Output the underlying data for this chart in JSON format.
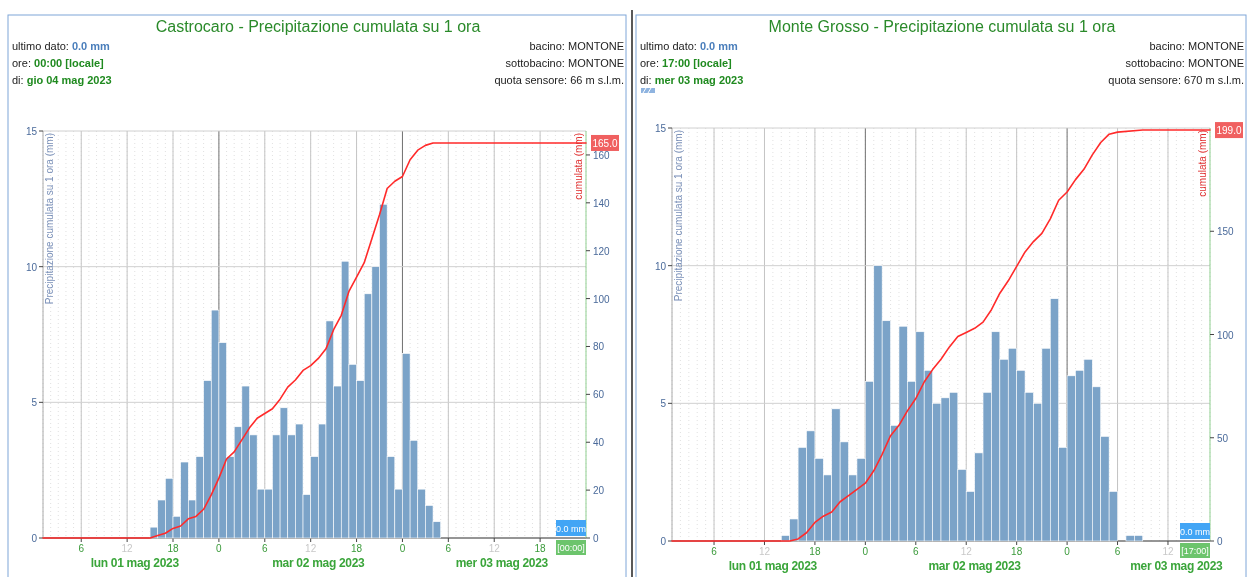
{
  "chart_data": [
    {
      "type": "bar",
      "title": "Castrocaro - Precipitazione cumulata su 1 ora",
      "ylabel": "Precipitazione cumulata su 1 ora (mm)",
      "y2label": "cumulata (mm)",
      "grid": true,
      "xlim": [
        "2023-05-01T01:00",
        "2023-05-04T00:00"
      ],
      "xticks": [
        {
          "value": "2023-05-01T06:00",
          "label": "6"
        },
        {
          "value": "2023-05-01T12:00",
          "label": "12"
        },
        {
          "value": "2023-05-01T18:00",
          "label": "18"
        },
        {
          "value": "2023-05-02T00:00",
          "label": "0"
        },
        {
          "value": "2023-05-02T06:00",
          "label": "6"
        },
        {
          "value": "2023-05-02T12:00",
          "label": "12"
        },
        {
          "value": "2023-05-02T18:00",
          "label": "18"
        },
        {
          "value": "2023-05-03T00:00",
          "label": "0"
        },
        {
          "value": "2023-05-03T06:00",
          "label": "6"
        },
        {
          "value": "2023-05-03T12:00",
          "label": "12"
        },
        {
          "value": "2023-05-03T18:00",
          "label": "18"
        }
      ],
      "ylim": [
        0,
        15
      ],
      "yticks": [
        0,
        5,
        10,
        15
      ],
      "y2lim": [
        0,
        170
      ],
      "y2ticks": [
        0,
        20,
        40,
        60,
        80,
        100,
        120,
        140,
        160
      ],
      "annotations": [
        "ultimo dato: 0.0 mm",
        "ore: 00:00 [locale]",
        "di: gio 04 mag 2023",
        "bacino: MONTONE",
        "sottobacino: MONTONE",
        "quota sensore: 66 m s.l.m.",
        "0.0 mm",
        "[00:00]",
        "lun 01 mag 2023",
        "mar 02 mag 2023",
        "mer 03 mag 2023"
      ],
      "series": [
        {
          "color": "#7ba3c8",
          "x": [
            "2023-05-01T15:30",
            "2023-05-01T16:30",
            "2023-05-01T17:30",
            "2023-05-01T18:30",
            "2023-05-01T19:30",
            "2023-05-01T20:30",
            "2023-05-01T21:30",
            "2023-05-01T22:30",
            "2023-05-01T23:30",
            "2023-05-02T00:30",
            "2023-05-02T01:30",
            "2023-05-02T02:30",
            "2023-05-02T03:30",
            "2023-05-02T04:30",
            "2023-05-02T05:30",
            "2023-05-02T06:30",
            "2023-05-02T07:30",
            "2023-05-02T08:30",
            "2023-05-02T09:30",
            "2023-05-02T10:30",
            "2023-05-02T11:30",
            "2023-05-02T12:30",
            "2023-05-02T13:30",
            "2023-05-02T14:30",
            "2023-05-02T15:30",
            "2023-05-02T16:30",
            "2023-05-02T17:30",
            "2023-05-02T18:30",
            "2023-05-02T19:30",
            "2023-05-02T20:30",
            "2023-05-02T21:30",
            "2023-05-02T22:30",
            "2023-05-02T23:30",
            "2023-05-03T00:30",
            "2023-05-03T01:30",
            "2023-05-03T02:30",
            "2023-05-03T03:30",
            "2023-05-03T04:30"
          ],
          "values": [
            0.4,
            1.4,
            2.2,
            0.8,
            2.8,
            1.4,
            3.0,
            5.8,
            8.4,
            7.2,
            3.0,
            4.1,
            5.6,
            3.8,
            1.8,
            1.8,
            3.8,
            4.8,
            3.8,
            4.2,
            1.6,
            3.0,
            4.2,
            8.0,
            5.6,
            10.2,
            6.4,
            5.8,
            9.0,
            10.0,
            12.3,
            3.0,
            1.8,
            6.8,
            3.6,
            1.8,
            1.2,
            0.6
          ]
        },
        {
          "type": "line",
          "axis": "y2",
          "color": "#ff2a2a",
          "x": [
            "2023-05-01T01:00",
            "2023-05-01T15:00",
            "2023-05-01T16:00",
            "2023-05-01T17:00",
            "2023-05-01T18:00",
            "2023-05-01T19:00",
            "2023-05-01T20:00",
            "2023-05-01T21:00",
            "2023-05-01T22:00",
            "2023-05-01T23:00",
            "2023-05-02T00:00",
            "2023-05-02T01:00",
            "2023-05-02T02:00",
            "2023-05-02T03:00",
            "2023-05-02T04:00",
            "2023-05-02T05:00",
            "2023-05-02T06:00",
            "2023-05-02T07:00",
            "2023-05-02T08:00",
            "2023-05-02T09:00",
            "2023-05-02T10:00",
            "2023-05-02T11:00",
            "2023-05-02T12:00",
            "2023-05-02T13:00",
            "2023-05-02T14:00",
            "2023-05-02T15:00",
            "2023-05-02T16:00",
            "2023-05-02T17:00",
            "2023-05-02T18:00",
            "2023-05-02T19:00",
            "2023-05-02T20:00",
            "2023-05-02T21:00",
            "2023-05-02T22:00",
            "2023-05-02T23:00",
            "2023-05-03T00:00",
            "2023-05-03T01:00",
            "2023-05-03T02:00",
            "2023-05-03T03:00",
            "2023-05-03T04:00",
            "2023-05-03T05:00",
            "2023-05-04T00:00"
          ],
          "values": [
            0,
            0,
            1,
            2,
            4,
            5,
            8,
            9,
            12,
            18,
            25,
            33,
            36,
            41,
            46,
            50,
            52,
            54,
            58,
            63,
            66,
            70,
            72,
            75,
            79,
            87,
            93,
            103,
            109,
            115,
            125,
            135,
            146,
            149,
            151,
            158,
            162,
            164,
            165,
            165,
            165
          ],
          "value_labels": [
            null,
            null,
            null,
            null,
            null,
            null,
            null,
            null,
            null,
            null,
            null,
            null,
            null,
            null,
            null,
            null,
            null,
            null,
            null,
            null,
            null,
            null,
            null,
            null,
            null,
            null,
            null,
            null,
            null,
            null,
            null,
            null,
            null,
            null,
            null,
            null,
            null,
            null,
            null,
            null,
            "165.0"
          ]
        }
      ]
    },
    {
      "type": "bar",
      "title": "Monte Grosso - Precipitazione cumulata su 1 ora",
      "ylabel": "Precipitazione cumulata su 1 ora (mm)",
      "y2label": "cumulata (mm)",
      "grid": true,
      "xlim": [
        "2023-05-01T01:00",
        "2023-05-03T17:00"
      ],
      "xticks": [
        {
          "value": "2023-05-01T06:00",
          "label": "6"
        },
        {
          "value": "2023-05-01T12:00",
          "label": "12"
        },
        {
          "value": "2023-05-01T18:00",
          "label": "18"
        },
        {
          "value": "2023-05-02T00:00",
          "label": "0"
        },
        {
          "value": "2023-05-02T06:00",
          "label": "6"
        },
        {
          "value": "2023-05-02T12:00",
          "label": "12"
        },
        {
          "value": "2023-05-02T18:00",
          "label": "18"
        },
        {
          "value": "2023-05-03T00:00",
          "label": "0"
        },
        {
          "value": "2023-05-03T06:00",
          "label": "6"
        },
        {
          "value": "2023-05-03T12:00",
          "label": "12"
        }
      ],
      "ylim": [
        0,
        15
      ],
      "yticks": [
        0,
        5,
        10,
        15
      ],
      "y2lim": [
        0,
        200
      ],
      "y2ticks": [
        0,
        50,
        100,
        150
      ],
      "annotations": [
        "ultimo dato: 0.0 mm",
        "ore: 17:00 [locale]",
        "di: mer 03 mag 2023",
        "bacino: MONTONE",
        "sottobacino: MONTONE",
        "quota sensore: 670 m s.l.m.",
        "0.0 mm",
        "[17:00]",
        "lun 01 mag 2023",
        "mar 02 mag 2023",
        "mer 03 mag 2023"
      ],
      "series": [
        {
          "color": "#7ba3c8",
          "x": [
            "2023-05-01T14:30",
            "2023-05-01T15:30",
            "2023-05-01T16:30",
            "2023-05-01T17:30",
            "2023-05-01T18:30",
            "2023-05-01T19:30",
            "2023-05-01T20:30",
            "2023-05-01T21:30",
            "2023-05-01T22:30",
            "2023-05-01T23:30",
            "2023-05-02T00:30",
            "2023-05-02T01:30",
            "2023-05-02T02:30",
            "2023-05-02T03:30",
            "2023-05-02T04:30",
            "2023-05-02T05:30",
            "2023-05-02T06:30",
            "2023-05-02T07:30",
            "2023-05-02T08:30",
            "2023-05-02T09:30",
            "2023-05-02T10:30",
            "2023-05-02T11:30",
            "2023-05-02T12:30",
            "2023-05-02T13:30",
            "2023-05-02T14:30",
            "2023-05-02T15:30",
            "2023-05-02T16:30",
            "2023-05-02T17:30",
            "2023-05-02T18:30",
            "2023-05-02T19:30",
            "2023-05-02T20:30",
            "2023-05-02T21:30",
            "2023-05-02T22:30",
            "2023-05-02T23:30",
            "2023-05-03T00:30",
            "2023-05-03T01:30",
            "2023-05-03T02:30",
            "2023-05-03T03:30",
            "2023-05-03T04:30",
            "2023-05-03T05:30",
            "2023-05-03T07:30",
            "2023-05-03T08:30"
          ],
          "values": [
            0.2,
            0.8,
            3.4,
            4.0,
            3.0,
            2.4,
            4.8,
            3.6,
            2.4,
            3.0,
            5.8,
            10.0,
            8.0,
            4.2,
            7.8,
            5.8,
            7.6,
            6.2,
            5.0,
            5.2,
            5.4,
            2.6,
            1.8,
            3.2,
            5.4,
            7.6,
            6.6,
            7.0,
            6.2,
            5.4,
            5.0,
            7.0,
            8.8,
            3.4,
            6.0,
            6.2,
            6.6,
            5.6,
            3.8,
            1.8,
            0.2,
            0.2
          ]
        },
        {
          "type": "line",
          "axis": "y2",
          "color": "#ff2a2a",
          "x": [
            "2023-05-01T01:00",
            "2023-05-01T14:00",
            "2023-05-01T15:00",
            "2023-05-01T16:00",
            "2023-05-01T17:00",
            "2023-05-01T18:00",
            "2023-05-01T19:00",
            "2023-05-01T20:00",
            "2023-05-01T21:00",
            "2023-05-01T22:00",
            "2023-05-01T23:00",
            "2023-05-02T00:00",
            "2023-05-02T01:00",
            "2023-05-02T02:00",
            "2023-05-02T03:00",
            "2023-05-02T04:00",
            "2023-05-02T05:00",
            "2023-05-02T06:00",
            "2023-05-02T07:00",
            "2023-05-02T08:00",
            "2023-05-02T09:00",
            "2023-05-02T10:00",
            "2023-05-02T11:00",
            "2023-05-02T12:00",
            "2023-05-02T13:00",
            "2023-05-02T14:00",
            "2023-05-02T15:00",
            "2023-05-02T16:00",
            "2023-05-02T17:00",
            "2023-05-02T18:00",
            "2023-05-02T19:00",
            "2023-05-02T20:00",
            "2023-05-02T21:00",
            "2023-05-02T22:00",
            "2023-05-02T23:00",
            "2023-05-03T00:00",
            "2023-05-03T01:00",
            "2023-05-03T02:00",
            "2023-05-03T03:00",
            "2023-05-03T04:00",
            "2023-05-03T05:00",
            "2023-05-03T06:00",
            "2023-05-03T09:00",
            "2023-05-03T17:00"
          ],
          "values": [
            0,
            0,
            0,
            1,
            4,
            9,
            12,
            14,
            19,
            22,
            25,
            28,
            34,
            42,
            51,
            56,
            63,
            69,
            77,
            83,
            88,
            94,
            99,
            101,
            103,
            106,
            112,
            120,
            126,
            133,
            140,
            145,
            149,
            156,
            165,
            169,
            175,
            180,
            187,
            193,
            197,
            198,
            199,
            199
          ],
          "value_labels": [
            null,
            null,
            null,
            null,
            null,
            null,
            null,
            null,
            null,
            null,
            null,
            null,
            null,
            null,
            null,
            null,
            null,
            null,
            null,
            null,
            null,
            null,
            null,
            null,
            null,
            null,
            null,
            null,
            null,
            null,
            null,
            null,
            null,
            null,
            null,
            null,
            null,
            null,
            null,
            null,
            null,
            null,
            null,
            "199.0"
          ]
        }
      ]
    }
  ]
}
